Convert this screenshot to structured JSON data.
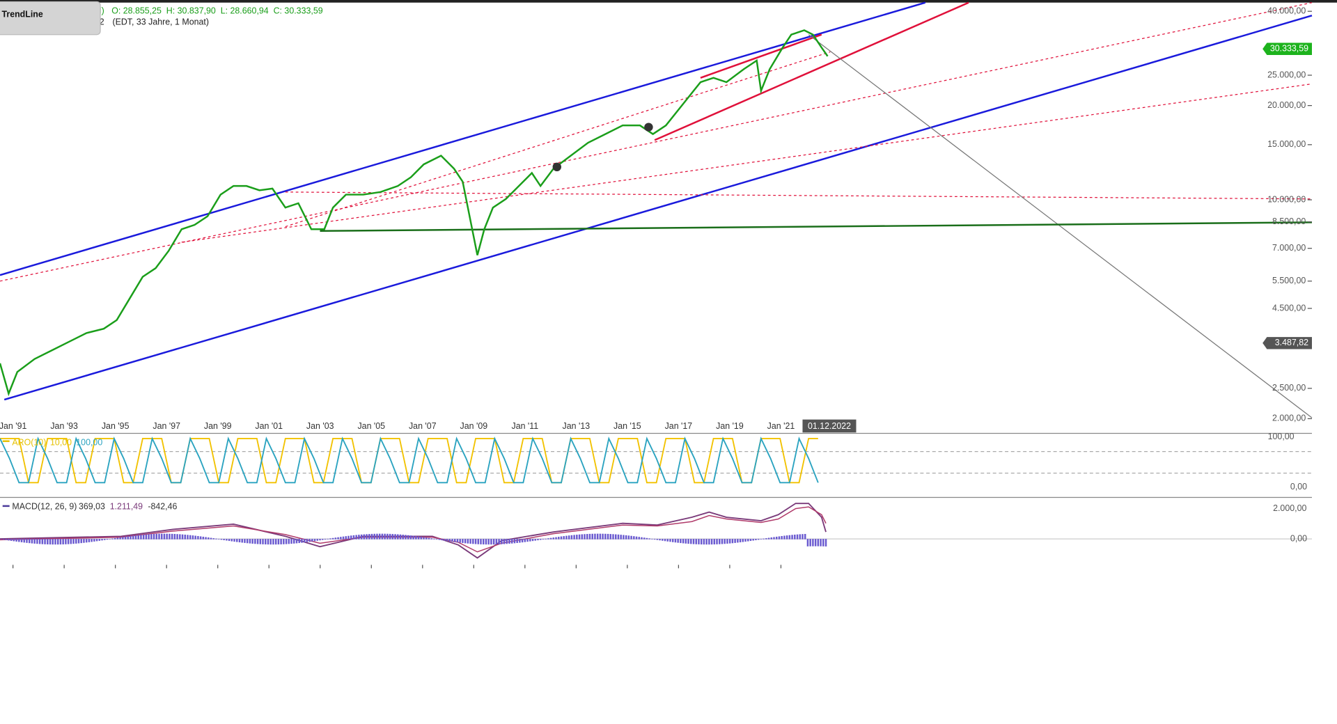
{
  "header": {
    "ohlc": "O: 28.855,25  H: 30.837,90  L: 28.660,94  C: 30.333,59",
    "info": "(EDT, 33 Jahre, 1 Monat)",
    "prefix_a": "l)",
    "prefix_b": "2"
  },
  "tooltip": {
    "title": "TrendLine"
  },
  "price_axis": {
    "log": true,
    "ticks": [
      {
        "value": 40000,
        "label": "40.000,00"
      },
      {
        "value": 25000,
        "label": "25.000,00"
      },
      {
        "value": 20000,
        "label": "20.000,00"
      },
      {
        "value": 15000,
        "label": "15.000,00"
      },
      {
        "value": 10000,
        "label": "10.000,00"
      },
      {
        "value": 8500,
        "label": "8.500,00"
      },
      {
        "value": 7000,
        "label": "7.000,00"
      },
      {
        "value": 5500,
        "label": "5.500,00"
      },
      {
        "value": 4500,
        "label": "4.500,00"
      },
      {
        "value": 2500,
        "label": "2.500,00"
      },
      {
        "value": 2000,
        "label": "2.000,00"
      }
    ],
    "tags": [
      {
        "value": 30333.59,
        "label": "30.333,59",
        "color": "#1db31d"
      },
      {
        "value": 3487.82,
        "label": "3.487,82",
        "color": "#555555"
      }
    ]
  },
  "time_axis": {
    "labels": [
      "Jan '91",
      "Jan '93",
      "Jan '95",
      "Jan '97",
      "Jan '99",
      "Jan '01",
      "Jan '03",
      "Jan '05",
      "Jan '07",
      "Jan '09",
      "Jan '11",
      "Jan '13",
      "Jan '15",
      "Jan '17",
      "Jan '19",
      "Jan '21"
    ],
    "cursor": "01.12.2022"
  },
  "aroon": {
    "name": "ARO(10)",
    "down": "10,00",
    "up": "100,00",
    "axis": [
      "100,00",
      "0,00"
    ]
  },
  "macd": {
    "name": "MACD(12, 26, 9)",
    "v1": "369,03",
    "v2": "1.211,49",
    "v3": "-842,46",
    "axis": [
      "2.000,00",
      "0,00"
    ]
  }
}
